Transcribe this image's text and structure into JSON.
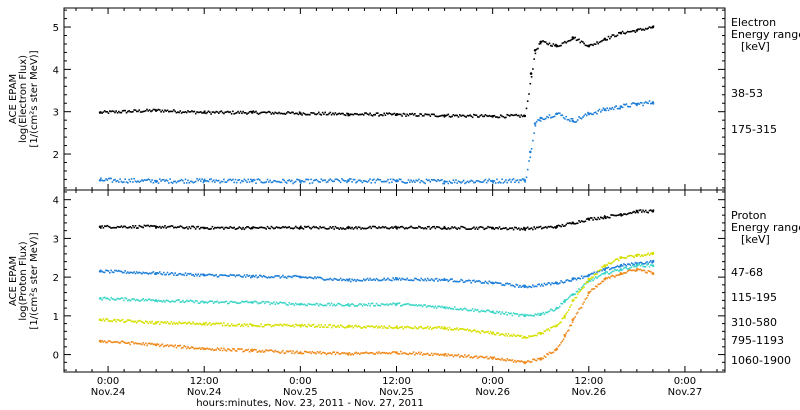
{
  "x_axis": {
    "ticks": [
      {
        "time": "0:00",
        "date": "Nov.24"
      },
      {
        "time": "12:00",
        "date": "Nov.24"
      },
      {
        "time": "0:00",
        "date": "Nov.25"
      },
      {
        "time": "12:00",
        "date": "Nov.25"
      },
      {
        "time": "0:00",
        "date": "Nov.26"
      },
      {
        "time": "12:00",
        "date": "Nov.26"
      },
      {
        "time": "0:00",
        "date": "Nov.27"
      }
    ],
    "label": "hours:minutes, Nov. 23, 2011 - Nov. 27, 2011",
    "range_hours": [
      -5.5,
      77
    ],
    "tick_hours": [
      0,
      12,
      24,
      36,
      48,
      60,
      72
    ]
  },
  "panels": {
    "electron": {
      "ylabel": [
        "ACE EPAM",
        "log(Electron Flux)",
        "[1/(cm²s ster MeV)]"
      ],
      "legend_title": [
        "Electron",
        "Energy ranges",
        "[keV]"
      ],
      "ylim": [
        1.15,
        5.45
      ],
      "yticks": [
        2,
        3,
        4,
        5
      ]
    },
    "proton": {
      "ylabel": [
        "ACE EPAM",
        "log(Proton Flux)",
        "[1/(cm²s ster MeV)]"
      ],
      "legend_title": [
        "Proton",
        "Energy ranges",
        "[keV]"
      ],
      "ylim": [
        -0.45,
        4.25
      ],
      "yticks": [
        0,
        1,
        2,
        3,
        4
      ]
    }
  },
  "chart_data": [
    {
      "type": "scatter",
      "panel": "electron",
      "x_unit": "hours since Nov.24 0:00",
      "ylim": [
        1.15,
        5.45
      ],
      "series": [
        {
          "name": "38-53",
          "color": "#000000",
          "x": [
            -1,
            6,
            12,
            18,
            24,
            30,
            36,
            42,
            48,
            52,
            52.8,
            53.3,
            54,
            56,
            58,
            60,
            62,
            64,
            66,
            68
          ],
          "y": [
            2.98,
            3.03,
            2.98,
            2.98,
            2.96,
            2.94,
            2.93,
            2.91,
            2.89,
            2.9,
            3.9,
            4.45,
            4.65,
            4.55,
            4.75,
            4.55,
            4.72,
            4.86,
            4.92,
            5.0
          ]
        },
        {
          "name": "175-315",
          "color": "#1e7fd8",
          "x": [
            -1,
            6,
            12,
            18,
            24,
            30,
            36,
            42,
            48,
            52,
            52.7,
            53.3,
            54,
            56,
            58,
            60,
            62,
            64,
            66,
            68
          ],
          "y": [
            1.38,
            1.36,
            1.37,
            1.36,
            1.35,
            1.37,
            1.36,
            1.35,
            1.36,
            1.38,
            2.05,
            2.72,
            2.85,
            2.95,
            2.78,
            2.95,
            3.05,
            3.12,
            3.18,
            3.22
          ]
        }
      ]
    },
    {
      "type": "scatter",
      "panel": "proton",
      "x_unit": "hours since Nov.24 0:00",
      "ylim": [
        -0.45,
        4.25
      ],
      "series": [
        {
          "name": "47-68",
          "color": "#000000",
          "x": [
            -1,
            6,
            12,
            18,
            24,
            30,
            36,
            42,
            48,
            52,
            56,
            58,
            60,
            62,
            64,
            66,
            68
          ],
          "y": [
            3.3,
            3.3,
            3.27,
            3.27,
            3.28,
            3.27,
            3.28,
            3.27,
            3.27,
            3.25,
            3.3,
            3.4,
            3.5,
            3.55,
            3.62,
            3.7,
            3.7
          ]
        },
        {
          "name": "115-195",
          "color": "#1e7fd8",
          "x": [
            -1,
            6,
            12,
            18,
            24,
            30,
            36,
            42,
            48,
            52,
            56,
            58,
            60,
            62,
            64,
            66,
            68
          ],
          "y": [
            2.15,
            2.1,
            2.05,
            2.02,
            2.0,
            1.92,
            1.95,
            1.93,
            1.85,
            1.75,
            1.85,
            1.95,
            2.05,
            2.2,
            2.3,
            2.35,
            2.4
          ]
        },
        {
          "name": "310-580",
          "color": "#3fd6c8",
          "x": [
            -1,
            6,
            12,
            18,
            24,
            30,
            36,
            42,
            48,
            52,
            54,
            56,
            57,
            58,
            60,
            62,
            64,
            66,
            68
          ],
          "y": [
            1.45,
            1.4,
            1.35,
            1.35,
            1.3,
            1.28,
            1.3,
            1.22,
            1.1,
            1.0,
            1.05,
            1.2,
            1.4,
            1.55,
            1.9,
            2.1,
            2.2,
            2.3,
            2.3
          ]
        },
        {
          "name": "795-1193",
          "color": "#d6e000",
          "x": [
            -1,
            6,
            12,
            18,
            24,
            30,
            36,
            42,
            48,
            52,
            54,
            56,
            57,
            58,
            60,
            62,
            64,
            66,
            68
          ],
          "y": [
            0.9,
            0.82,
            0.8,
            0.75,
            0.75,
            0.72,
            0.7,
            0.68,
            0.55,
            0.45,
            0.55,
            0.75,
            1.0,
            1.4,
            1.95,
            2.3,
            2.5,
            2.55,
            2.6
          ]
        },
        {
          "name": "1060-1900",
          "color": "#f08a1c",
          "x": [
            -1,
            6,
            12,
            18,
            24,
            30,
            36,
            42,
            48,
            52,
            54,
            56,
            57,
            58,
            60,
            62,
            64,
            66,
            68
          ],
          "y": [
            0.35,
            0.25,
            0.15,
            0.1,
            0.05,
            0.02,
            0.05,
            0.0,
            -0.1,
            -0.2,
            -0.1,
            0.15,
            0.5,
            0.9,
            1.6,
            1.95,
            2.1,
            2.2,
            2.1
          ]
        }
      ]
    }
  ]
}
